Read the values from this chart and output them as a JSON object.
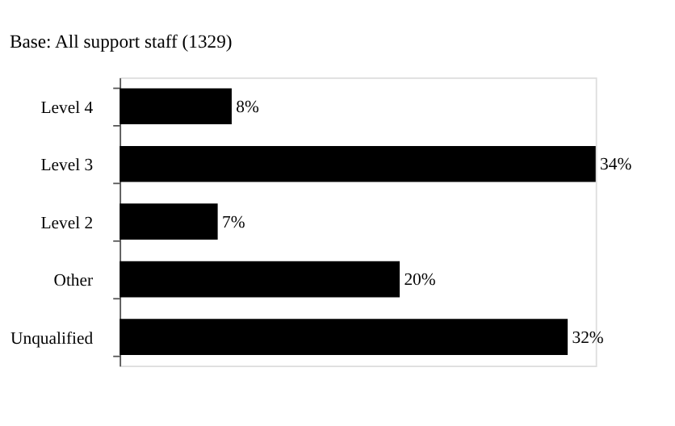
{
  "chart_data": {
    "type": "bar",
    "orientation": "horizontal",
    "title": "Base:  All support staff (1329)",
    "categories": [
      "Level 4",
      "Level 3",
      "Level 2",
      "Other",
      "Unqualified"
    ],
    "values": [
      8,
      34,
      7,
      20,
      32
    ],
    "value_labels": [
      "8%",
      "34%",
      "7%",
      "20%",
      "32%"
    ],
    "color": "#000000",
    "grid": false
  }
}
